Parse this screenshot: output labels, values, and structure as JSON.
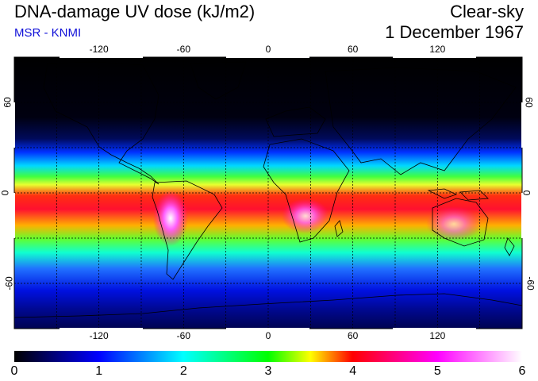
{
  "header": {
    "title": "DNA-damage UV dose (kJ/m2)",
    "subtitle": "MSR - KNMI",
    "sky_condition": "Clear-sky",
    "date": "1 December 1967"
  },
  "map": {
    "projection": "equirectangular",
    "lon_ticks": [
      "-120",
      "-60",
      "0",
      "60",
      "120"
    ],
    "lon_values": [
      -120,
      -60,
      0,
      60,
      120
    ],
    "lat_ticks": [
      "60",
      "0",
      "-60"
    ],
    "lat_values": [
      60,
      0,
      -60
    ],
    "lon_range": [
      -180,
      180
    ],
    "lat_range": [
      -90,
      90
    ],
    "gridlines": true
  },
  "colorbar": {
    "labels": [
      "0",
      "1",
      "2",
      "3",
      "4",
      "5",
      "6"
    ],
    "values": [
      0,
      1,
      2,
      3,
      4,
      5,
      6
    ],
    "colors": [
      "#000000",
      "#0000ff",
      "#00ffff",
      "#00ff00",
      "#ffff00",
      "#ff0000",
      "#ff00ff",
      "#ffffff"
    ]
  }
}
